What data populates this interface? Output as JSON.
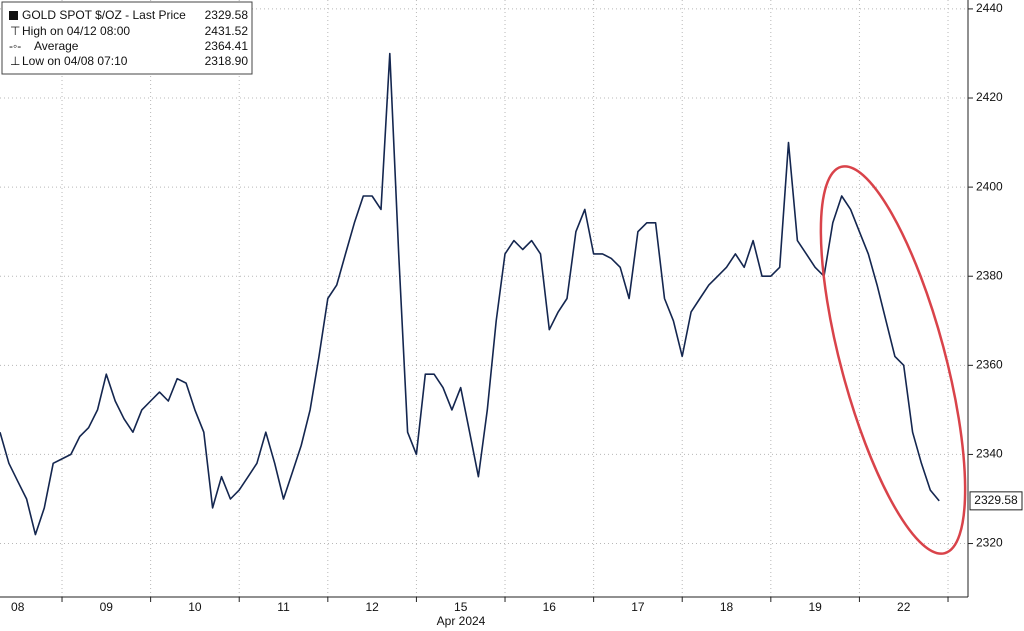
{
  "chart_data": {
    "type": "line",
    "x_label": "Apr 2024",
    "categories": [
      null,
      null,
      "08",
      null,
      null,
      null,
      null,
      null,
      null,
      null,
      null,
      null,
      "09",
      null,
      null,
      null,
      null,
      null,
      null,
      null,
      null,
      null,
      "10",
      null,
      null,
      null,
      null,
      null,
      null,
      null,
      null,
      null,
      "11",
      null,
      null,
      null,
      null,
      null,
      null,
      null,
      null,
      null,
      "12",
      null,
      null,
      null,
      null,
      null,
      null,
      null,
      null,
      null,
      "15",
      null,
      null,
      null,
      null,
      null,
      null,
      null,
      null,
      null,
      "16",
      null,
      null,
      null,
      null,
      null,
      null,
      null,
      null,
      null,
      "17",
      null,
      null,
      null,
      null,
      null,
      null,
      null,
      null,
      null,
      "18",
      null,
      null,
      null,
      null,
      null,
      null,
      null,
      null,
      null,
      "19",
      null,
      null,
      null,
      null,
      null,
      null,
      null,
      null,
      null,
      "22",
      null,
      null,
      null,
      null
    ],
    "series": [
      {
        "name": "GOLD SPOT $/OZ - Last Price",
        "color": "#14264f",
        "values": [
          2345,
          2338,
          2334,
          2330,
          2322,
          2328,
          2338,
          2339,
          2340,
          2344,
          2346,
          2350,
          2358,
          2352,
          2348,
          2345,
          2350,
          2352,
          2354,
          2352,
          2357,
          2356,
          2350,
          2345,
          2328,
          2335,
          2330,
          2332,
          2335,
          2338,
          2345,
          2338,
          2330,
          2336,
          2342,
          2350,
          2362,
          2375,
          2378,
          2385,
          2392,
          2398,
          2398,
          2395,
          2430,
          2385,
          2345,
          2340,
          2358,
          2358,
          2355,
          2350,
          2355,
          2345,
          2335,
          2350,
          2370,
          2385,
          2388,
          2386,
          2388,
          2385,
          2368,
          2372,
          2375,
          2390,
          2395,
          2385,
          2385,
          2384,
          2382,
          2375,
          2390,
          2392,
          2392,
          2375,
          2370,
          2362,
          2372,
          2375,
          2378,
          2380,
          2382,
          2385,
          2382,
          2388,
          2380,
          2380,
          2382,
          2410,
          2388,
          2385,
          2382,
          2380,
          2392,
          2398,
          2395,
          2390,
          2385,
          2378,
          2370,
          2362,
          2360,
          2345,
          2338,
          2332,
          2329.58
        ]
      }
    ],
    "stats": [
      {
        "name": "High on 04/12 08:00",
        "value": 2431.52
      },
      {
        "name": "Average",
        "value": 2364.41
      },
      {
        "name": "Low on 04/08 07:10",
        "value": 2318.9,
        "value_label": "2318.90"
      }
    ],
    "ylim": [
      2308,
      2442
    ],
    "yticks": [
      2320,
      2340,
      2360,
      2380,
      2400,
      2420,
      2440
    ],
    "grid": true
  }
}
